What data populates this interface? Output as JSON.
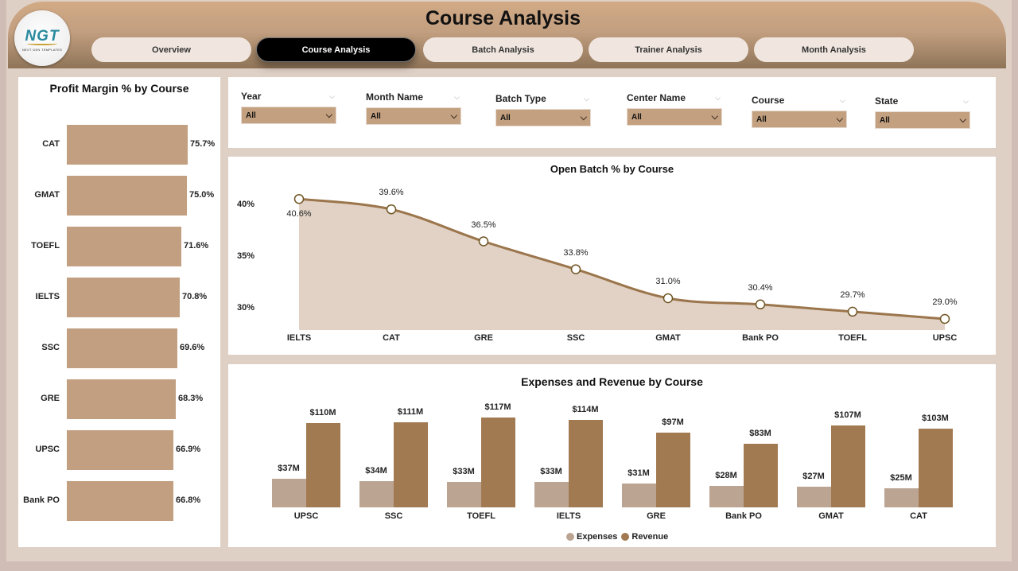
{
  "header": {
    "title": "Course Analysis",
    "logo": {
      "main": "NGT",
      "sub": "NEXT GEN TEMPLATES"
    },
    "tabs": [
      {
        "label": "Overview",
        "active": false
      },
      {
        "label": "Course Analysis",
        "active": true
      },
      {
        "label": "Batch Analysis",
        "active": false
      },
      {
        "label": "Trainer Analysis",
        "active": false
      },
      {
        "label": "Month Analysis",
        "active": false
      }
    ]
  },
  "filters": [
    {
      "label": "Year",
      "value": "All"
    },
    {
      "label": "Month Name",
      "value": "All"
    },
    {
      "label": "Batch Type",
      "value": "All"
    },
    {
      "label": "Center Name",
      "value": "All"
    },
    {
      "label": "Course",
      "value": "All"
    },
    {
      "label": "State",
      "value": "All"
    }
  ],
  "icons": {
    "chevron": "⌵"
  },
  "colors": {
    "bar": "#c29f80",
    "line": "#9b754c",
    "area": "#e1d2c5",
    "expenses": "#bba592",
    "revenue": "#a27a52",
    "header_top": "#d2aa85",
    "header_bottom": "#8f7458"
  },
  "chart_data": [
    {
      "type": "bar",
      "orientation": "horizontal",
      "title": "Profit Margin % by Course",
      "categories": [
        "CAT",
        "GMAT",
        "TOEFL",
        "IELTS",
        "SSC",
        "GRE",
        "UPSC",
        "Bank PO"
      ],
      "values": [
        75.7,
        75.0,
        71.6,
        70.8,
        69.6,
        68.3,
        66.9,
        66.8
      ],
      "labels": [
        "75.7%",
        "75.0%",
        "71.6%",
        "70.8%",
        "69.6%",
        "68.3%",
        "66.9%",
        "66.8%"
      ],
      "xlabel": "",
      "ylabel": "",
      "grid": false
    },
    {
      "type": "area",
      "title": "Open Batch % by Course",
      "categories": [
        "IELTS",
        "CAT",
        "GRE",
        "SSC",
        "GMAT",
        "Bank PO",
        "TOEFL",
        "UPSC"
      ],
      "values": [
        40.6,
        39.6,
        36.5,
        33.8,
        31.0,
        30.4,
        29.7,
        29.0
      ],
      "labels": [
        "40.6%",
        "39.6%",
        "36.5%",
        "33.8%",
        "31.0%",
        "30.4%",
        "29.7%",
        "29.0%"
      ],
      "yticks": [
        "40%",
        "35%",
        "30%"
      ],
      "ylim": [
        28,
        41.5
      ],
      "grid": false
    },
    {
      "type": "bar",
      "title": "Expenses and Revenue by Course",
      "categories": [
        "UPSC",
        "SSC",
        "TOEFL",
        "IELTS",
        "GRE",
        "Bank PO",
        "GMAT",
        "CAT"
      ],
      "series": [
        {
          "name": "Expenses",
          "values": [
            37,
            34,
            33,
            33,
            31,
            28,
            27,
            25
          ],
          "labels": [
            "$37M",
            "$34M",
            "$33M",
            "$33M",
            "$31M",
            "$28M",
            "$27M",
            "$25M"
          ]
        },
        {
          "name": "Revenue",
          "values": [
            110,
            111,
            117,
            114,
            97,
            83,
            107,
            103
          ],
          "labels": [
            "$110M",
            "$111M",
            "$117M",
            "$114M",
            "$97M",
            "$83M",
            "$107M",
            "$103M"
          ]
        }
      ],
      "legend": [
        "Expenses",
        "Revenue"
      ],
      "legend_position": "bottom",
      "ylim": [
        0,
        120
      ],
      "grid": false
    }
  ]
}
